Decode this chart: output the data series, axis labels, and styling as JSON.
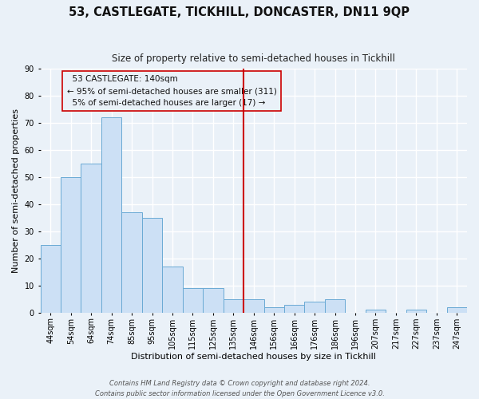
{
  "title": "53, CASTLEGATE, TICKHILL, DONCASTER, DN11 9QP",
  "subtitle": "Size of property relative to semi-detached houses in Tickhill",
  "xlabel": "Distribution of semi-detached houses by size in Tickhill",
  "ylabel": "Number of semi-detached properties",
  "bin_labels": [
    "44sqm",
    "54sqm",
    "64sqm",
    "74sqm",
    "85sqm",
    "95sqm",
    "105sqm",
    "115sqm",
    "125sqm",
    "135sqm",
    "146sqm",
    "156sqm",
    "166sqm",
    "176sqm",
    "186sqm",
    "196sqm",
    "207sqm",
    "217sqm",
    "227sqm",
    "237sqm",
    "247sqm"
  ],
  "bar_heights": [
    25,
    50,
    55,
    72,
    37,
    35,
    17,
    9,
    9,
    5,
    5,
    2,
    3,
    4,
    5,
    0,
    1,
    0,
    1,
    0,
    2
  ],
  "bar_color": "#cce0f5",
  "bar_edge_color": "#6aaad4",
  "vline_x": 10,
  "vline_color": "#cc0000",
  "ylim": [
    0,
    90
  ],
  "yticks": [
    0,
    10,
    20,
    30,
    40,
    50,
    60,
    70,
    80,
    90
  ],
  "annotation_title": "53 CASTLEGATE: 140sqm",
  "annotation_line1": "← 95% of semi-detached houses are smaller (311)",
  "annotation_line2": "5% of semi-detached houses are larger (17) →",
  "footnote1": "Contains HM Land Registry data © Crown copyright and database right 2024.",
  "footnote2": "Contains public sector information licensed under the Open Government Licence v3.0.",
  "bg_color": "#eaf1f8",
  "grid_color": "#ffffff",
  "title_fontsize": 10.5,
  "subtitle_fontsize": 8.5,
  "axis_label_fontsize": 8,
  "tick_fontsize": 7,
  "annotation_fontsize": 7.5,
  "footnote_fontsize": 6
}
